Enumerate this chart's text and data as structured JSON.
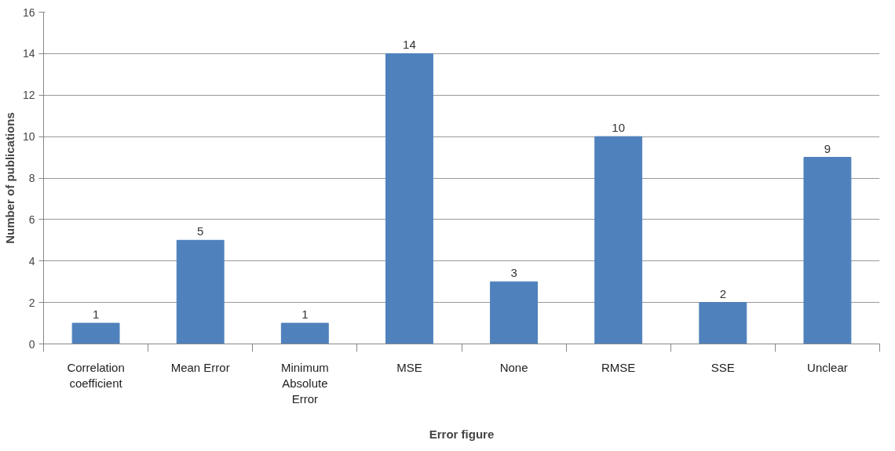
{
  "chart_data": {
    "type": "bar",
    "xlabel": "Error figure",
    "ylabel": "Number of publications",
    "categories": [
      "Correlation coefficient",
      "Mean Error",
      "Minimum Absolute Error",
      "MSE",
      "None",
      "RMSE",
      "SSE",
      "Unclear"
    ],
    "values": [
      1,
      5,
      1,
      14,
      3,
      10,
      2,
      9
    ],
    "color": "#4f81bd",
    "ylim": [
      0,
      16
    ],
    "yticks": [
      0,
      2,
      4,
      6,
      8,
      10,
      12,
      14,
      16
    ],
    "grid": "y",
    "data_labels": true
  }
}
